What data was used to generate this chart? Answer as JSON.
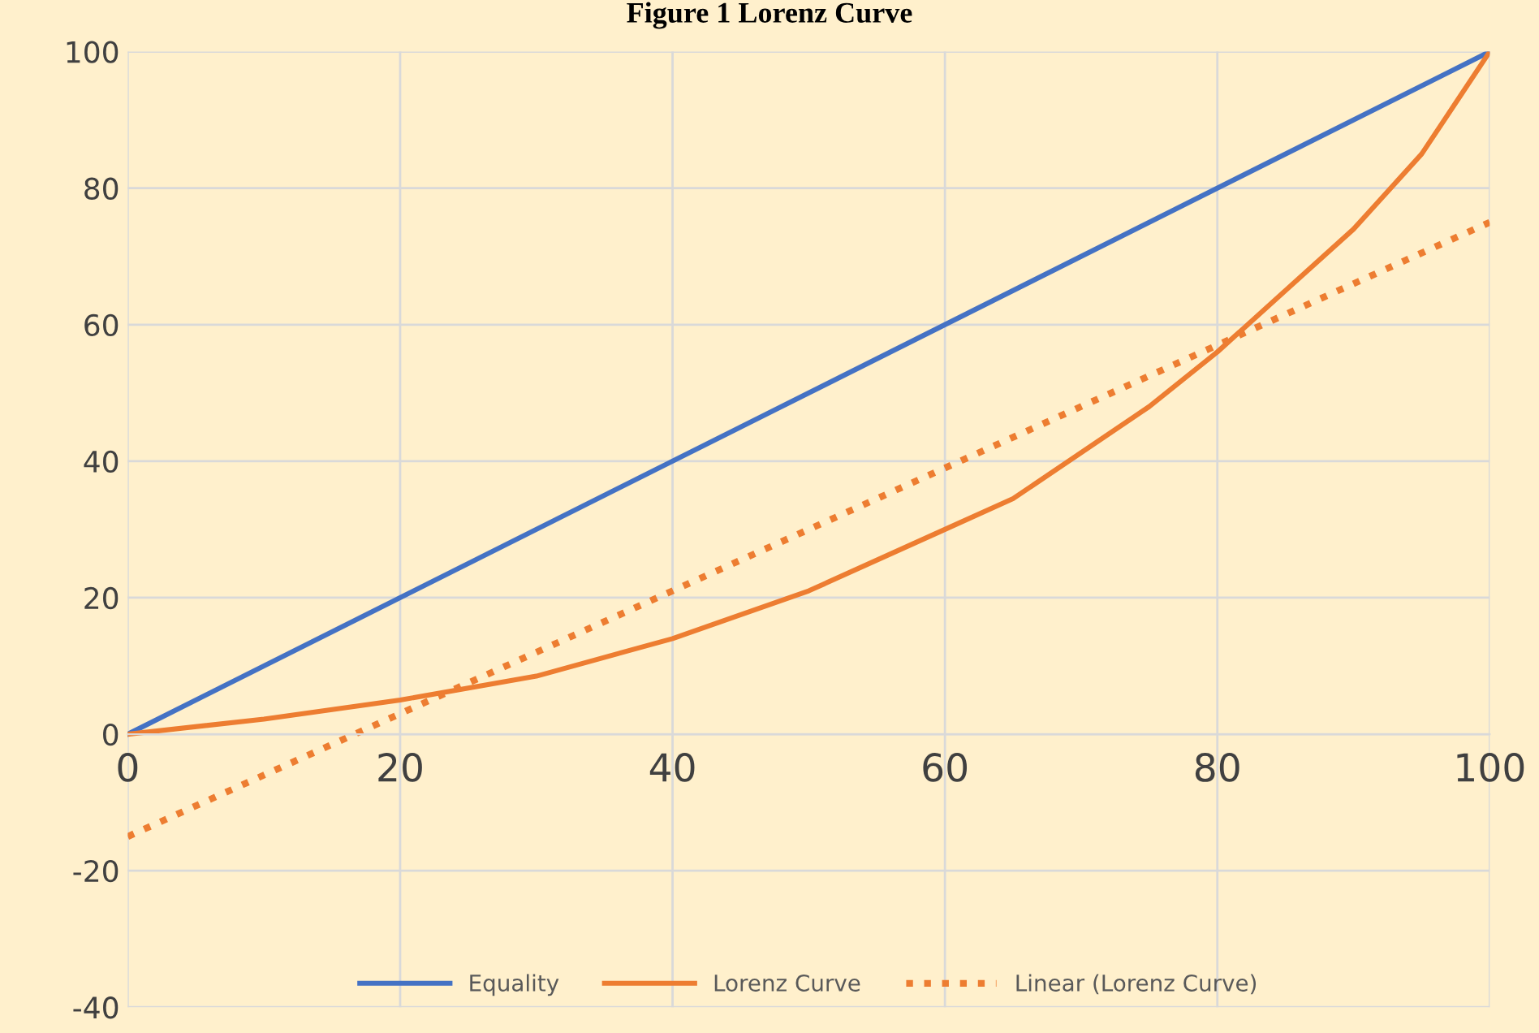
{
  "chart_data": {
    "type": "line",
    "title": "Figure 1 Lorenz Curve",
    "xlim": [
      0,
      100
    ],
    "xticks": [
      0,
      20,
      40,
      60,
      80,
      100
    ],
    "ylim": [
      -40,
      100
    ],
    "yticks": [
      -40,
      -20,
      0,
      20,
      40,
      60,
      80,
      100
    ],
    "grid": true,
    "legend": "bottom",
    "series": [
      {
        "name": "Equality",
        "color": "#4472c4",
        "x": [
          0,
          100
        ],
        "values": [
          0,
          100
        ],
        "line_style": "solid"
      },
      {
        "name": "Lorenz Curve",
        "color": "#ed7d31",
        "x": [
          0,
          10,
          20,
          30,
          40,
          50,
          60,
          65,
          75,
          80,
          85,
          90,
          95,
          98,
          100
        ],
        "values": [
          0,
          2.2,
          5,
          8.5,
          14,
          21,
          30,
          34.5,
          48,
          56,
          65,
          74,
          85,
          94,
          100
        ],
        "line_style": "solid"
      },
      {
        "name": "Linear (Lorenz Curve)",
        "color": "#ed7d31",
        "x": [
          0,
          100
        ],
        "values": [
          -15,
          75
        ],
        "line_style": "dotted"
      }
    ]
  }
}
